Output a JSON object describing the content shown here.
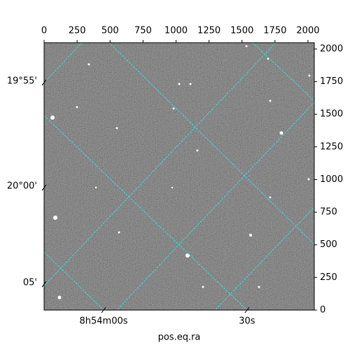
{
  "chart_data": {
    "type": "image",
    "xlabel": "pos.eq.ra",
    "xlim": [
      0,
      2048
    ],
    "ylim": [
      0,
      2048
    ],
    "xticks": [
      0,
      250,
      500,
      750,
      1000,
      1250,
      1500,
      1750,
      2000
    ],
    "yticks": [
      0,
      250,
      500,
      750,
      1000,
      1250,
      1500,
      1750,
      2000
    ],
    "wcs_xticks": [
      {
        "value": 451,
        "label": "8h54m00s"
      },
      {
        "value": 1538,
        "label": "30s"
      }
    ],
    "wcs_yticks": [
      {
        "value": 1743,
        "label": "19°55'"
      },
      {
        "value": 938,
        "label": "20°00'"
      },
      {
        "value": 198,
        "label": "05'"
      }
    ],
    "grid_color": "#33dddd"
  }
}
